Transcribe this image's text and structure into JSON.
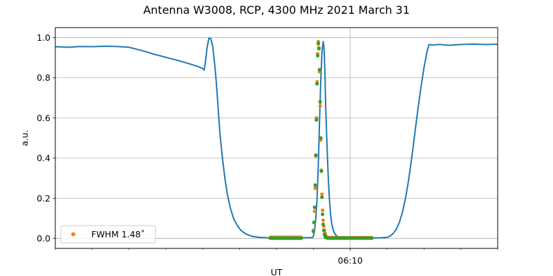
{
  "chart_data": {
    "type": "line",
    "title": "Antenna W3008, RCP, 4300 MHz 2021 March 31",
    "xlabel": "UT",
    "ylabel": "a.u.",
    "xlim": [
      "06:02:00",
      "06:14:00"
    ],
    "ylim": [
      -0.05,
      1.05
    ],
    "x_major_tick_labels": [
      {
        "x": "06:10:00",
        "label": "06:10"
      }
    ],
    "x_minor_ticks": [
      "06:02:00",
      "06:03:00",
      "06:04:00",
      "06:05:00",
      "06:06:00",
      "06:07:00",
      "06:08:00",
      "06:09:00",
      "06:11:00",
      "06:12:00",
      "06:13:00",
      "06:14:00"
    ],
    "y_ticks": [
      0.0,
      0.2,
      0.4,
      0.6,
      0.8,
      1.0
    ],
    "y_tick_labels": [
      "0.0",
      "0.2",
      "0.4",
      "0.6",
      "0.8",
      "1.0"
    ],
    "grid": true,
    "legend_position": "lower-left",
    "series": [
      {
        "kind": "line",
        "color": "#1f77b4",
        "points": [
          [
            "06:02:00",
            0.955
          ],
          [
            "06:02:20",
            0.952
          ],
          [
            "06:02:40",
            0.956
          ],
          [
            "06:03:00",
            0.955
          ],
          [
            "06:03:20",
            0.957
          ],
          [
            "06:03:40",
            0.956
          ],
          [
            "06:04:00",
            0.952
          ],
          [
            "06:04:10",
            0.944
          ],
          [
            "06:04:25",
            0.932
          ],
          [
            "06:04:40",
            0.918
          ],
          [
            "06:05:00",
            0.902
          ],
          [
            "06:05:20",
            0.886
          ],
          [
            "06:05:40",
            0.868
          ],
          [
            "06:05:53",
            0.855
          ],
          [
            "06:06:00",
            0.846
          ],
          [
            "06:06:02",
            0.838
          ],
          [
            "06:06:04",
            0.87
          ],
          [
            "06:06:07",
            0.95
          ],
          [
            "06:06:10",
            0.998
          ],
          [
            "06:06:13",
            0.995
          ],
          [
            "06:06:16",
            0.96
          ],
          [
            "06:06:19",
            0.88
          ],
          [
            "06:06:22",
            0.78
          ],
          [
            "06:06:25",
            0.65
          ],
          [
            "06:06:28",
            0.52
          ],
          [
            "06:06:32",
            0.4
          ],
          [
            "06:06:36",
            0.3
          ],
          [
            "06:06:40",
            0.22
          ],
          [
            "06:06:45",
            0.15
          ],
          [
            "06:06:50",
            0.1
          ],
          [
            "06:06:56",
            0.065
          ],
          [
            "06:07:02",
            0.04
          ],
          [
            "06:07:10",
            0.022
          ],
          [
            "06:07:20",
            0.01
          ],
          [
            "06:07:32",
            0.005
          ],
          [
            "06:07:45",
            0.003
          ],
          [
            "06:08:00",
            0.002
          ],
          [
            "06:08:30",
            0.002
          ],
          [
            "06:08:58",
            0.004
          ],
          [
            "06:09:00",
            0.01
          ],
          [
            "06:09:02",
            0.04
          ],
          [
            "06:09:04",
            0.1
          ],
          [
            "06:09:06",
            0.2
          ],
          [
            "06:09:08",
            0.36
          ],
          [
            "06:09:10",
            0.58
          ],
          [
            "06:09:12",
            0.78
          ],
          [
            "06:09:14",
            0.93
          ],
          [
            "06:09:16",
            0.98
          ],
          [
            "06:09:17",
            0.96
          ],
          [
            "06:09:18",
            0.9
          ],
          [
            "06:09:19",
            0.8
          ],
          [
            "06:09:20",
            0.66
          ],
          [
            "06:09:22",
            0.48
          ],
          [
            "06:09:24",
            0.32
          ],
          [
            "06:09:26",
            0.2
          ],
          [
            "06:09:28",
            0.12
          ],
          [
            "06:09:30",
            0.07
          ],
          [
            "06:09:33",
            0.035
          ],
          [
            "06:09:36",
            0.018
          ],
          [
            "06:09:40",
            0.008
          ],
          [
            "06:09:45",
            0.004
          ],
          [
            "06:10:00",
            0.002
          ],
          [
            "06:10:30",
            0.002
          ],
          [
            "06:10:50",
            0.003
          ],
          [
            "06:11:00",
            0.005
          ],
          [
            "06:11:05",
            0.012
          ],
          [
            "06:11:10",
            0.025
          ],
          [
            "06:11:15",
            0.045
          ],
          [
            "06:11:20",
            0.08
          ],
          [
            "06:11:25",
            0.13
          ],
          [
            "06:11:30",
            0.2
          ],
          [
            "06:11:35",
            0.29
          ],
          [
            "06:11:40",
            0.4
          ],
          [
            "06:11:45",
            0.52
          ],
          [
            "06:11:50",
            0.64
          ],
          [
            "06:11:55",
            0.75
          ],
          [
            "06:12:00",
            0.85
          ],
          [
            "06:12:05",
            0.93
          ],
          [
            "06:12:08",
            0.965
          ],
          [
            "06:12:15",
            0.963
          ],
          [
            "06:12:25",
            0.966
          ],
          [
            "06:12:40",
            0.962
          ],
          [
            "06:13:00",
            0.966
          ],
          [
            "06:13:20",
            0.968
          ],
          [
            "06:13:40",
            0.966
          ],
          [
            "06:14:00",
            0.967
          ]
        ]
      },
      {
        "kind": "scatter",
        "name": "FWHM 1.48$^{\\circ}$",
        "legend_label": "FWHM 1.48˚",
        "color": "#ff7f0e",
        "points": [
          [
            "06:07:50",
            0.005
          ],
          [
            "06:08:40",
            0.005
          ],
          [
            "06:09:00",
            0.04
          ],
          [
            "06:09:01",
            0.078
          ],
          [
            "06:09:02",
            0.135
          ],
          [
            "06:09:03",
            0.25
          ],
          [
            "06:09:04",
            0.41
          ],
          [
            "06:09:05",
            0.6
          ],
          [
            "06:09:06",
            0.78
          ],
          [
            "06:09:07",
            0.92
          ],
          [
            "06:09:08",
            0.98
          ],
          [
            "06:09:09",
            0.95
          ],
          [
            "06:09:10",
            0.83
          ],
          [
            "06:09:11",
            0.66
          ],
          [
            "06:09:12",
            0.49
          ],
          [
            "06:09:13",
            0.34
          ],
          [
            "06:09:14",
            0.22
          ],
          [
            "06:09:15",
            0.14
          ],
          [
            "06:09:16",
            0.09
          ],
          [
            "06:09:17",
            0.06
          ],
          [
            "06:09:18",
            0.04
          ],
          [
            "06:09:19",
            0.025
          ],
          [
            "06:09:20",
            0.015
          ],
          [
            "06:09:21",
            0.01
          ],
          [
            "06:09:22",
            0.007
          ],
          [
            "06:10:35",
            0.004
          ]
        ]
      },
      {
        "kind": "scatter",
        "color": "#2ca02c",
        "points": [
          [
            "06:07:50",
            0.001
          ],
          [
            "06:08:40",
            0.001
          ],
          [
            "06:09:00",
            0.035
          ],
          [
            "06:09:01",
            0.08
          ],
          [
            "06:09:02",
            0.155
          ],
          [
            "06:09:03",
            0.265
          ],
          [
            "06:09:04",
            0.415
          ],
          [
            "06:09:05",
            0.59
          ],
          [
            "06:09:06",
            0.77
          ],
          [
            "06:09:07",
            0.91
          ],
          [
            "06:09:08",
            0.97
          ],
          [
            "06:09:09",
            0.945
          ],
          [
            "06:09:10",
            0.84
          ],
          [
            "06:09:11",
            0.68
          ],
          [
            "06:09:12",
            0.5
          ],
          [
            "06:09:13",
            0.335
          ],
          [
            "06:09:14",
            0.205
          ],
          [
            "06:09:15",
            0.12
          ],
          [
            "06:09:16",
            0.07
          ],
          [
            "06:09:17",
            0.04
          ],
          [
            "06:09:18",
            0.02
          ],
          [
            "06:09:19",
            0.01
          ],
          [
            "06:09:20",
            0.004
          ],
          [
            "06:10:35",
            0.001
          ]
        ]
      }
    ]
  }
}
